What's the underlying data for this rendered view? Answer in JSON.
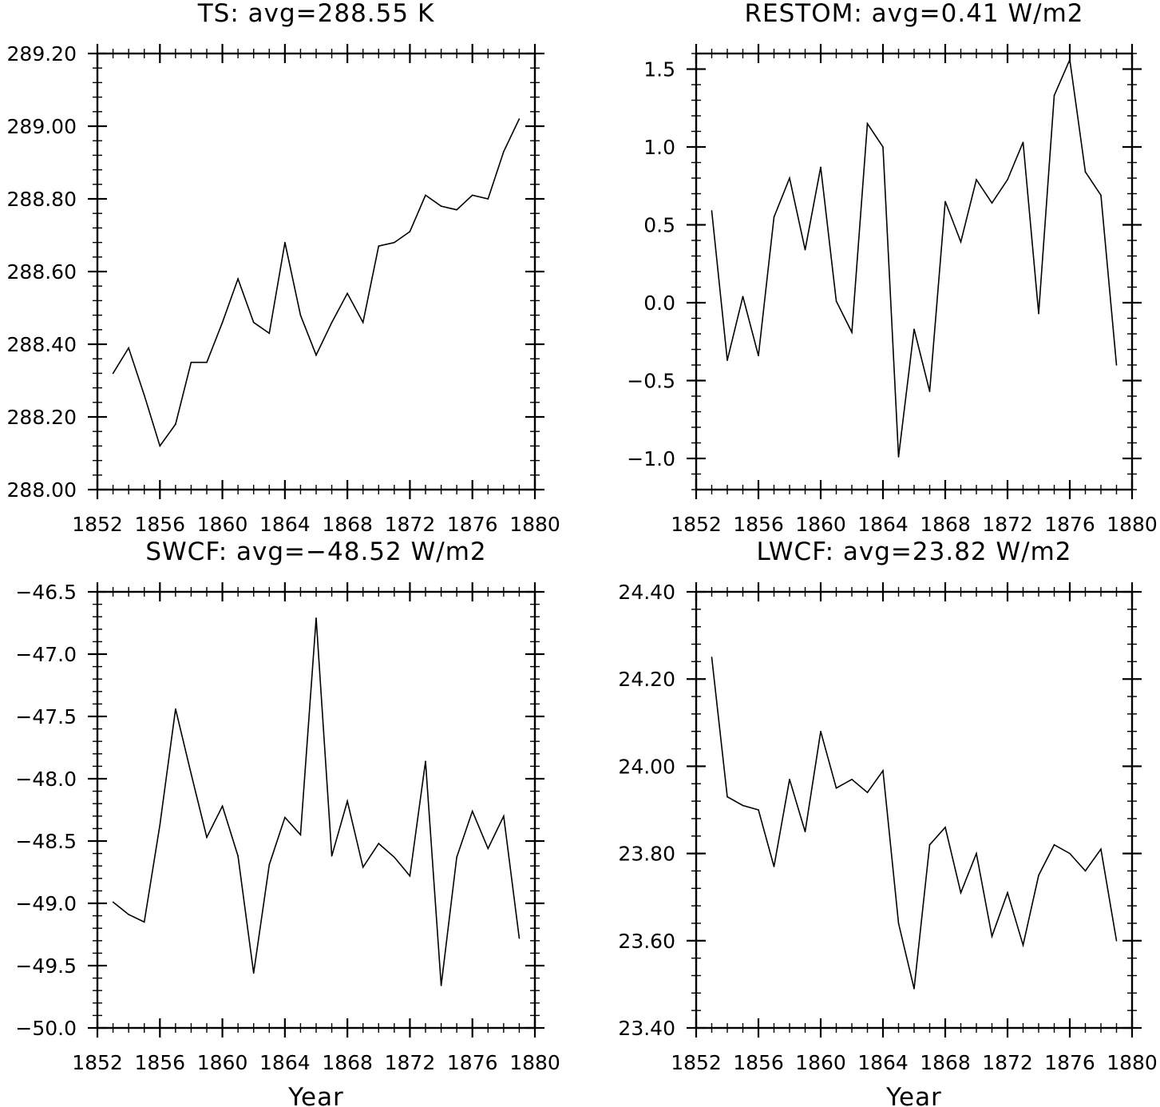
{
  "chart_data": [
    {
      "type": "line",
      "title": "TS: avg=288.55 K",
      "xlabel": "",
      "ylabel": "",
      "xlim": [
        1852,
        1880
      ],
      "ylim": [
        288.0,
        289.2
      ],
      "xticks": [
        "1852",
        "1856",
        "1860",
        "1864",
        "1868",
        "1872",
        "1876",
        "1880"
      ],
      "yticks": [
        "288.00",
        "288.20",
        "288.40",
        "288.60",
        "288.80",
        "289.00",
        "289.20"
      ],
      "x": [
        1853,
        1854,
        1855,
        1856,
        1857,
        1858,
        1859,
        1860,
        1861,
        1862,
        1863,
        1864,
        1865,
        1866,
        1867,
        1868,
        1869,
        1870,
        1871,
        1872,
        1873,
        1874,
        1875,
        1876,
        1877,
        1878,
        1879
      ],
      "y": [
        288.32,
        288.39,
        288.26,
        288.12,
        288.18,
        288.35,
        288.35,
        288.46,
        288.58,
        288.46,
        288.43,
        288.68,
        288.48,
        288.37,
        288.46,
        288.54,
        288.46,
        288.67,
        288.68,
        288.71,
        288.81,
        288.78,
        288.77,
        288.81,
        288.8,
        288.93,
        289.02
      ],
      "grid": false
    },
    {
      "type": "line",
      "title": "RESTOM: avg=0.41 W/m2",
      "xlabel": "",
      "ylabel": "",
      "xlim": [
        1852,
        1880
      ],
      "ylim": [
        -1.2,
        1.6
      ],
      "xticks": [
        "1852",
        "1856",
        "1860",
        "1864",
        "1868",
        "1872",
        "1876",
        "1880"
      ],
      "yticks": [
        "−1.0",
        "−0.5",
        "0.0",
        "0.5",
        "1.0",
        "1.5"
      ],
      "x": [
        1853,
        1854,
        1855,
        1856,
        1857,
        1858,
        1859,
        1860,
        1861,
        1862,
        1863,
        1864,
        1865,
        1866,
        1867,
        1868,
        1869,
        1870,
        1871,
        1872,
        1873,
        1874,
        1875,
        1876,
        1877,
        1878,
        1879
      ],
      "y": [
        0.59,
        -0.37,
        0.04,
        -0.34,
        0.55,
        0.8,
        0.34,
        0.87,
        0.01,
        -0.19,
        1.15,
        1.0,
        -0.99,
        -0.17,
        -0.57,
        0.65,
        0.39,
        0.79,
        0.64,
        0.79,
        1.03,
        -0.07,
        1.33,
        1.56,
        0.84,
        0.69,
        -0.4
      ],
      "grid": false
    },
    {
      "type": "line",
      "title": "SWCF: avg=−48.52 W/m2",
      "xlabel": "Year",
      "ylabel": "",
      "xlim": [
        1852,
        1880
      ],
      "ylim": [
        -50.0,
        -46.5
      ],
      "xticks": [
        "1852",
        "1856",
        "1860",
        "1864",
        "1868",
        "1872",
        "1876",
        "1880"
      ],
      "yticks": [
        "−50.0",
        "−49.5",
        "−49.0",
        "−48.5",
        "−48.0",
        "−47.5",
        "−47.0",
        "−46.5"
      ],
      "x": [
        1853,
        1854,
        1855,
        1856,
        1857,
        1858,
        1859,
        1860,
        1861,
        1862,
        1863,
        1864,
        1865,
        1866,
        1867,
        1868,
        1869,
        1870,
        1871,
        1872,
        1873,
        1874,
        1875,
        1876,
        1877,
        1878,
        1879
      ],
      "y": [
        -48.99,
        -49.09,
        -49.15,
        -48.37,
        -47.44,
        -47.96,
        -48.47,
        -48.22,
        -48.62,
        -49.56,
        -48.69,
        -48.31,
        -48.45,
        -46.71,
        -48.62,
        -48.18,
        -48.71,
        -48.52,
        -48.63,
        -48.78,
        -47.86,
        -49.66,
        -48.63,
        -48.26,
        -48.56,
        -48.3,
        -49.28
      ],
      "grid": false
    },
    {
      "type": "line",
      "title": "LWCF: avg=23.82 W/m2",
      "xlabel": "Year",
      "ylabel": "",
      "xlim": [
        1852,
        1880
      ],
      "ylim": [
        23.4,
        24.4
      ],
      "xticks": [
        "1852",
        "1856",
        "1860",
        "1864",
        "1868",
        "1872",
        "1876",
        "1880"
      ],
      "yticks": [
        "23.40",
        "23.60",
        "23.80",
        "24.00",
        "24.20",
        "24.40"
      ],
      "x": [
        1853,
        1854,
        1855,
        1856,
        1857,
        1858,
        1859,
        1860,
        1861,
        1862,
        1863,
        1864,
        1865,
        1866,
        1867,
        1868,
        1869,
        1870,
        1871,
        1872,
        1873,
        1874,
        1875,
        1876,
        1877,
        1878,
        1879
      ],
      "y": [
        24.25,
        23.93,
        23.91,
        23.9,
        23.77,
        23.97,
        23.85,
        24.08,
        23.95,
        23.97,
        23.94,
        23.99,
        23.64,
        23.49,
        23.82,
        23.86,
        23.71,
        23.8,
        23.61,
        23.71,
        23.59,
        23.75,
        23.82,
        23.8,
        23.76,
        23.81,
        23.6
      ],
      "grid": false
    }
  ]
}
